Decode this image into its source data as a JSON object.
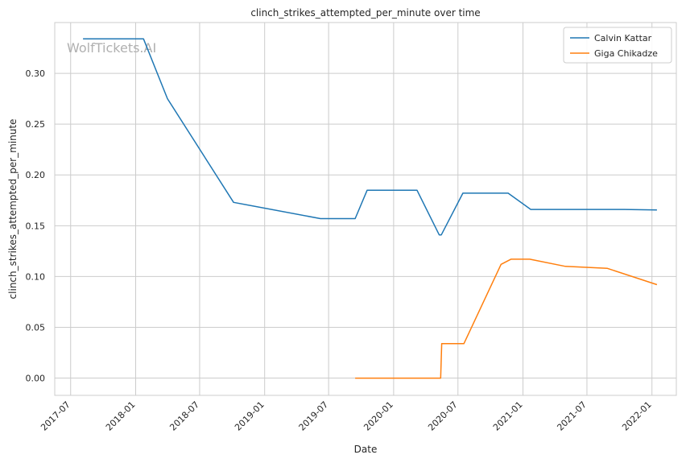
{
  "chart_data": {
    "type": "line",
    "title": "clinch_strikes_attempted_per_minute over time",
    "xlabel": "Date",
    "ylabel": "clinch_strikes_attempted_per_minute",
    "watermark": "WolfTickets.AI",
    "x_ticks": [
      "2017-07",
      "2018-01",
      "2018-07",
      "2019-01",
      "2019-07",
      "2020-01",
      "2020-07",
      "2021-01",
      "2021-07",
      "2022-01"
    ],
    "y_ticks": [
      "0.00",
      "0.05",
      "0.10",
      "0.15",
      "0.20",
      "0.25",
      "0.30"
    ],
    "xlim": [
      "2017-05-17",
      "2022-03-11"
    ],
    "ylim": [
      -0.017,
      0.35
    ],
    "grid": true,
    "legend_position": "top-right",
    "series": [
      {
        "name": "Calvin Kattar",
        "color": "#1f77b4",
        "points": [
          {
            "x": "2017-08-05",
            "y": 0.334
          },
          {
            "x": "2018-01-23",
            "y": 0.334
          },
          {
            "x": "2018-04-01",
            "y": 0.275
          },
          {
            "x": "2018-10-05",
            "y": 0.173
          },
          {
            "x": "2019-06-08",
            "y": 0.157
          },
          {
            "x": "2019-09-14",
            "y": 0.157
          },
          {
            "x": "2019-10-18",
            "y": 0.185
          },
          {
            "x": "2020-03-07",
            "y": 0.185
          },
          {
            "x": "2020-05-09",
            "y": 0.141
          },
          {
            "x": "2020-05-15",
            "y": 0.141
          },
          {
            "x": "2020-07-15",
            "y": 0.182
          },
          {
            "x": "2020-11-20",
            "y": 0.182
          },
          {
            "x": "2021-01-23",
            "y": 0.166
          },
          {
            "x": "2021-10-15",
            "y": 0.166
          },
          {
            "x": "2022-01-15",
            "y": 0.1655
          }
        ]
      },
      {
        "name": "Giga Chikadze",
        "color": "#ff7f0e",
        "points": [
          {
            "x": "2019-09-14",
            "y": 0.0
          },
          {
            "x": "2020-05-13",
            "y": 0.0
          },
          {
            "x": "2020-05-16",
            "y": 0.034
          },
          {
            "x": "2020-07-18",
            "y": 0.034
          },
          {
            "x": "2020-10-31",
            "y": 0.112
          },
          {
            "x": "2020-11-28",
            "y": 0.117
          },
          {
            "x": "2021-01-20",
            "y": 0.117
          },
          {
            "x": "2021-05-01",
            "y": 0.11
          },
          {
            "x": "2021-08-28",
            "y": 0.108
          },
          {
            "x": "2022-01-15",
            "y": 0.092
          }
        ]
      }
    ]
  }
}
